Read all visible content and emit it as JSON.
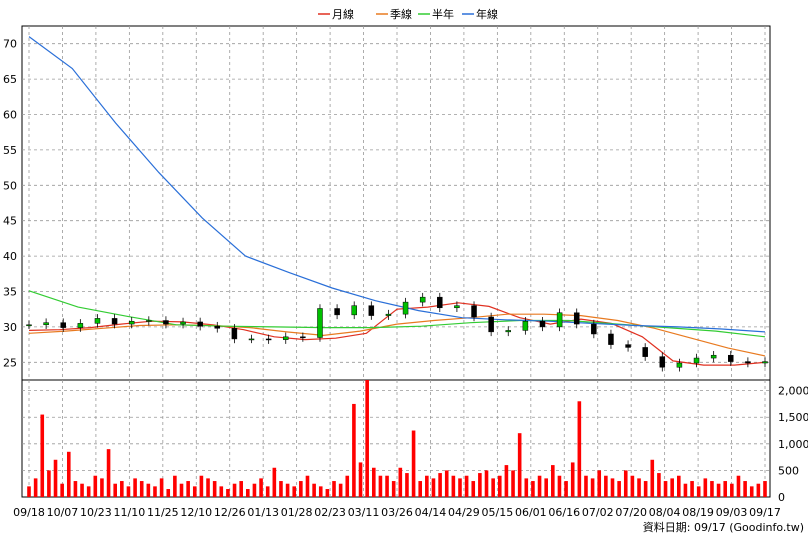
{
  "legend": {
    "items": [
      {
        "label": "月線",
        "color": "#e03020"
      },
      {
        "label": "季線",
        "color": "#e87a20"
      },
      {
        "label": "半年",
        "color": "#33cc33"
      },
      {
        "label": "年線",
        "color": "#2a6fd8"
      }
    ]
  },
  "footer": {
    "text": "資料日期: 09/17  (Goodinfo.tw)"
  },
  "colors": {
    "up": "#00c000",
    "down": "#000000",
    "volume": "#ff0000",
    "grid": "#999999"
  },
  "chart_data": [
    {
      "type": "line",
      "title": "",
      "ylim": [
        22.5,
        72.5
      ],
      "y_ticks": [
        25,
        30,
        35,
        40,
        45,
        50,
        55,
        60,
        65,
        70
      ],
      "x_ticks": [
        "09/18",
        "10/07",
        "10/23",
        "11/10",
        "11/25",
        "12/10",
        "12/26",
        "01/13",
        "01/28",
        "02/23",
        "03/11",
        "03/26",
        "04/14",
        "04/29",
        "05/15",
        "06/01",
        "06/16",
        "07/02",
        "07/20",
        "08/04",
        "08/19",
        "09/03",
        "09/17"
      ],
      "grid": true,
      "series": [
        {
          "name": "月線",
          "values": [
            29.5,
            29.6,
            29.9,
            30.4,
            30.8,
            30.7,
            30.3,
            29.6,
            28.6,
            28.2,
            28.4,
            29.1,
            32.5,
            32.8,
            33.4,
            32.9,
            31.3,
            30.4,
            31.1,
            30.5,
            28.6,
            25.2,
            24.6,
            24.6,
            25.0
          ]
        },
        {
          "name": "季線",
          "values": [
            29.1,
            29.4,
            29.8,
            30.2,
            30.3,
            30.2,
            29.9,
            29.3,
            28.8,
            29.4,
            30.4,
            30.9,
            31.3,
            31.8,
            31.8,
            31.6,
            30.9,
            29.8,
            28.4,
            27.0,
            25.9
          ]
        },
        {
          "name": "半年",
          "values": [
            35.1,
            32.8,
            31.5,
            30.3,
            30.1,
            30.0,
            29.9,
            29.9,
            30.1,
            30.6,
            30.9,
            30.9,
            30.4,
            29.9,
            29.4,
            28.6
          ]
        },
        {
          "name": "年線",
          "values": [
            71.0,
            66.5,
            58.8,
            51.8,
            45.4,
            40.0,
            37.7,
            35.5,
            33.7,
            32.3,
            31.3,
            31.0,
            30.8,
            30.5,
            30.2,
            30.0,
            29.7,
            29.3
          ]
        }
      ],
      "candlesticks": {
        "closes": [
          30.3,
          30.6,
          29.9,
          30.5,
          31.2,
          30.4,
          30.8,
          30.9,
          30.4,
          30.7,
          30.1,
          29.8,
          28.3,
          28.3,
          28.2,
          28.6,
          28.5,
          32.6,
          31.7,
          33.0,
          31.6,
          31.8,
          33.5,
          34.2,
          32.7,
          33.0,
          31.4,
          29.3,
          29.5,
          30.8,
          30.0,
          32.0,
          30.4,
          29.0,
          27.5,
          27.1,
          25.8,
          24.3,
          24.9,
          25.6,
          26.0,
          25.1,
          24.9,
          25.1
        ]
      }
    },
    {
      "type": "bar",
      "title": "",
      "ylim": [
        0,
        2200
      ],
      "y_ticks": [
        0,
        500,
        1000,
        1500,
        2000
      ],
      "y_tick_labels": [
        "0",
        "500",
        "1,000",
        "1,500",
        "2,000"
      ],
      "values": [
        200,
        350,
        1550,
        500,
        700,
        250,
        850,
        300,
        250,
        200,
        400,
        350,
        900,
        250,
        300,
        200,
        350,
        300,
        250,
        200,
        350,
        150,
        400,
        250,
        300,
        200,
        400,
        350,
        300,
        200,
        150,
        250,
        300,
        150,
        250,
        350,
        200,
        550,
        300,
        250,
        200,
        300,
        400,
        250,
        200,
        150,
        300,
        250,
        400,
        1750,
        650,
        2200,
        550,
        400,
        400,
        300,
        550,
        450,
        1250,
        300,
        400,
        350,
        450,
        500,
        400,
        350,
        400,
        300,
        450,
        500,
        350,
        400,
        600,
        500,
        1200,
        350,
        300,
        400,
        350,
        600,
        400,
        300,
        650,
        1800,
        400,
        350,
        500,
        400,
        350,
        300,
        500,
        400,
        350,
        300,
        700,
        450,
        300,
        350,
        400,
        250,
        300,
        200,
        350,
        300,
        250,
        300,
        250,
        400,
        300,
        200,
        250,
        300
      ]
    }
  ]
}
